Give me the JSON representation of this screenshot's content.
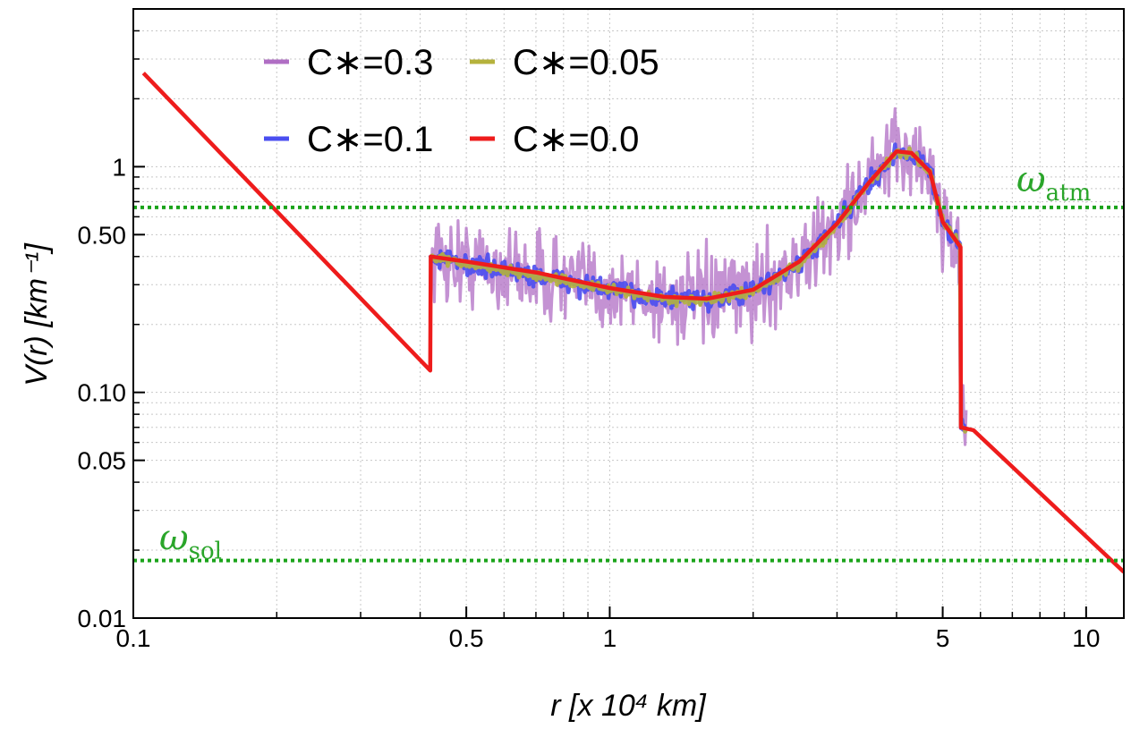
{
  "chart_data": {
    "type": "line",
    "x_scale": "log",
    "y_scale": "log",
    "xlim": [
      0.1,
      12
    ],
    "ylim": [
      0.01,
      5
    ],
    "grid": true,
    "xlabel": "r [x 10⁴ km]",
    "ylabel": "V(r) [km⁻¹]",
    "x_ticks": [
      {
        "value": 0.1,
        "label": "0.1"
      },
      {
        "value": 0.5,
        "label": "0.5"
      },
      {
        "value": 1,
        "label": "1"
      },
      {
        "value": 5,
        "label": "5"
      },
      {
        "value": 10,
        "label": "10"
      }
    ],
    "y_ticks": [
      {
        "value": 0.01,
        "label": "0.01"
      },
      {
        "value": 0.05,
        "label": "0.05"
      },
      {
        "value": 0.1,
        "label": "0.10"
      },
      {
        "value": 0.5,
        "label": "0.50"
      },
      {
        "value": 1,
        "label": "1"
      }
    ],
    "legend_placement": "top-left",
    "series": [
      {
        "name": "C*=0.3",
        "legend": "C∗=0.3",
        "color": "#b06ec4",
        "kind": "noisy",
        "noise_amp": 0.38,
        "x": [
          0.42,
          0.5,
          0.7,
          1.0,
          1.3,
          1.6,
          2.0,
          2.5,
          3.0,
          3.5,
          4.0,
          4.3,
          4.7,
          5.0,
          5.45,
          5.46,
          5.6
        ],
        "y": [
          0.4,
          0.37,
          0.33,
          0.285,
          0.26,
          0.255,
          0.28,
          0.37,
          0.55,
          0.85,
          1.15,
          1.15,
          0.95,
          0.58,
          0.44,
          0.07,
          0.068
        ]
      },
      {
        "name": "C*=0.1",
        "legend": "C∗=0.1",
        "color": "#4a4ef0",
        "kind": "noisy",
        "noise_amp": 0.09,
        "x": [
          0.42,
          0.5,
          0.7,
          1.0,
          1.3,
          1.6,
          2.0,
          2.5,
          3.0,
          3.5,
          4.0,
          4.3,
          4.7,
          5.0,
          5.45,
          5.46,
          5.6
        ],
        "y": [
          0.4,
          0.37,
          0.33,
          0.285,
          0.26,
          0.255,
          0.28,
          0.37,
          0.55,
          0.85,
          1.15,
          1.15,
          0.95,
          0.58,
          0.44,
          0.07,
          0.068
        ]
      },
      {
        "name": "C*=0.05",
        "legend": "C∗=0.05",
        "color": "#b5b23c",
        "kind": "noisy",
        "noise_amp": 0.04,
        "x": [
          0.42,
          0.5,
          0.7,
          1.0,
          1.3,
          1.6,
          2.0,
          2.5,
          3.0,
          3.5,
          4.0,
          4.3,
          4.7,
          5.0,
          5.45,
          5.46,
          5.6
        ],
        "y": [
          0.4,
          0.37,
          0.33,
          0.285,
          0.26,
          0.255,
          0.28,
          0.37,
          0.55,
          0.85,
          1.15,
          1.15,
          0.95,
          0.58,
          0.44,
          0.07,
          0.068
        ]
      },
      {
        "name": "C*=0.0",
        "legend": "C∗=0.0",
        "color": "#ee1c1c",
        "kind": "line",
        "x": [
          0.105,
          0.42,
          0.421,
          0.5,
          0.7,
          1.0,
          1.3,
          1.6,
          2.0,
          2.5,
          3.0,
          3.5,
          4.0,
          4.3,
          4.7,
          5.0,
          5.45,
          5.46,
          5.8,
          12
        ],
        "y": [
          2.6,
          0.125,
          0.4,
          0.38,
          0.34,
          0.29,
          0.265,
          0.26,
          0.285,
          0.38,
          0.56,
          0.85,
          1.17,
          1.15,
          0.95,
          0.57,
          0.44,
          0.07,
          0.068,
          0.016
        ]
      }
    ],
    "reference_lines": [
      {
        "name": "omega_atm",
        "symbol": "ω",
        "subscript": "atm",
        "y": 0.66,
        "color": "#1aa31a"
      },
      {
        "name": "omega_sol",
        "symbol": "ω",
        "subscript": "sol",
        "y": 0.018,
        "color": "#1aa31a"
      }
    ]
  }
}
